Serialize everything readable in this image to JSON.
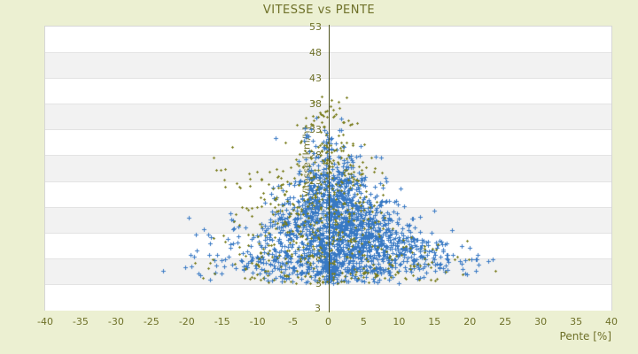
{
  "page": {
    "background": "#ecf0d2"
  },
  "chart_data": {
    "type": "scatter",
    "title": "VITESSE vs PENTE",
    "xlabel": "Pente [%]",
    "ylabel": "Vitesse [km/h]",
    "xlim": [
      -40,
      40
    ],
    "ylim": [
      -2,
      53
    ],
    "x_ticks": [
      -40,
      -35,
      -30,
      -25,
      -20,
      -15,
      -10,
      -5,
      0,
      5,
      10,
      15,
      20,
      25,
      30,
      35,
      40
    ],
    "y_ticks": [
      53,
      48,
      43,
      38,
      33,
      28,
      23,
      18,
      13,
      8,
      3
    ],
    "y_axis_end_label": "3",
    "grid": {
      "stripes": true,
      "stripe_colors": [
        "#ffffff",
        "#f2f2f2"
      ],
      "line_color": "#e3e3e3",
      "border_color": "#d6d6d6"
    },
    "axis_line_color": "#4f521d",
    "label_color": "#6e7028",
    "seed": 1337,
    "legend": null,
    "series": [
      {
        "name": "series-1-blue",
        "color": "#3879c4",
        "marker": "plus-large",
        "strata": [
          [
            3.2,
            5,
            60,
            1,
            8,
            22
          ],
          [
            3.2,
            8,
            60,
            0.3,
            0.7,
            2
          ],
          [
            5,
            8,
            260,
            2,
            7.5,
            21
          ],
          [
            8,
            12,
            420,
            2,
            6,
            17
          ],
          [
            12,
            16,
            420,
            1.5,
            5,
            14
          ],
          [
            16,
            20,
            300,
            1,
            4,
            11
          ],
          [
            20,
            24,
            160,
            0.5,
            3.2,
            9
          ],
          [
            24,
            28,
            70,
            0.5,
            2.4,
            7
          ],
          [
            28,
            32,
            28,
            0,
            1.8,
            5
          ],
          [
            32,
            35.5,
            8,
            0,
            1.5,
            4
          ],
          [
            5,
            12,
            70,
            13,
            4,
            11
          ],
          [
            6,
            16,
            50,
            -12,
            4,
            11
          ]
        ],
        "outliers": [
          [
            -23.3,
            5.5
          ],
          [
            -20.2,
            6.2
          ],
          [
            -18.3,
            5.1
          ],
          [
            23.2,
            7.8
          ],
          [
            20.8,
            5.6
          ],
          [
            17.5,
            13.5
          ],
          [
            -13.8,
            16.8
          ],
          [
            10.2,
            21.5
          ],
          [
            -7.4,
            31.3
          ],
          [
            14.9,
            17.2
          ]
        ]
      },
      {
        "name": "series-2-olive",
        "color": "#7b7e1e",
        "marker": "plus-small",
        "strata": [
          [
            3.2,
            5.5,
            40,
            0,
            11,
            24
          ],
          [
            4,
            8,
            70,
            0,
            8,
            20
          ],
          [
            8,
            14,
            110,
            -1,
            6.5,
            16
          ],
          [
            14,
            20,
            100,
            -1,
            5,
            12
          ],
          [
            20,
            26,
            90,
            -0.5,
            3.8,
            10
          ],
          [
            26,
            31,
            55,
            -0.5,
            2.8,
            8
          ],
          [
            31,
            36,
            28,
            0,
            2.2,
            6
          ],
          [
            36,
            39.5,
            8,
            0,
            1.5,
            3.5
          ],
          [
            14,
            26,
            40,
            -9,
            3.5,
            8
          ],
          [
            6,
            12,
            30,
            11,
            4,
            10
          ]
        ],
        "outliers": [
          [
            -16.2,
            27.6
          ],
          [
            -14.6,
            25.3
          ],
          [
            -13.6,
            29.6
          ],
          [
            23.6,
            5.6
          ],
          [
            0.4,
            38.8
          ],
          [
            1.6,
            37.2
          ],
          [
            -1.2,
            36.4
          ],
          [
            2.8,
            34.8
          ],
          [
            -12.4,
            21.8
          ],
          [
            -17.0,
            6.0
          ]
        ]
      }
    ]
  }
}
